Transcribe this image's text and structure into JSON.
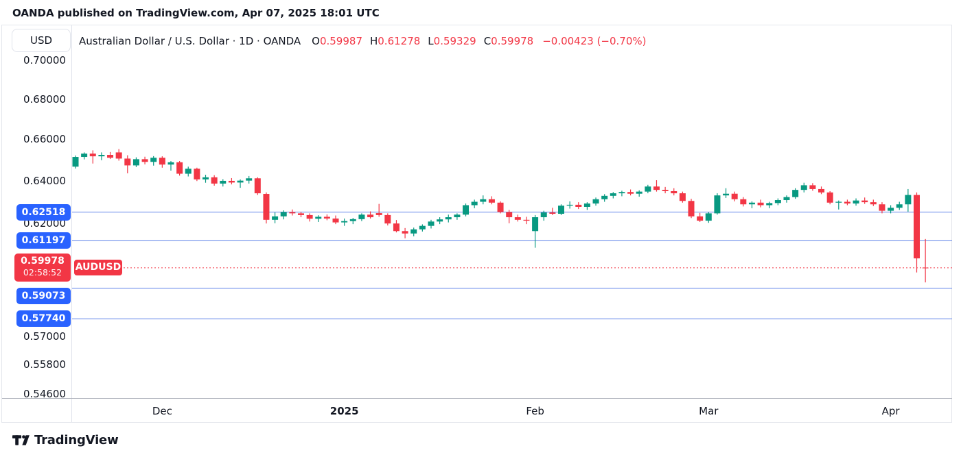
{
  "header": {
    "published": "OANDA published on TradingView.com, Apr 07, 2025 18:01 UTC"
  },
  "legend": {
    "currency": "USD",
    "symbol_title": "Australian Dollar / U.S. Dollar · 1D · OANDA",
    "ohlc": [
      {
        "k": "O",
        "v": "0.59987"
      },
      {
        "k": "H",
        "v": "0.61278"
      },
      {
        "k": "L",
        "v": "0.59329"
      },
      {
        "k": "C",
        "v": "0.59978"
      }
    ],
    "change": "−0.00423 (−0.70%)"
  },
  "current": {
    "price": 0.59978,
    "price_label": "0.59978",
    "countdown": "02:58:52",
    "symbol_tag": "AUDUSD"
  },
  "footer": {
    "logo_text": "TradingView"
  },
  "colors": {
    "up": "#089981",
    "down": "#F23645",
    "badge_blue": "#2962FF",
    "line_blue": "#5B7FE8",
    "text": "#131722",
    "axis_border": "#B2B5BE",
    "widget_border": "#E4E6EC"
  },
  "chart_data": {
    "type": "candlestick",
    "title": "Australian Dollar / U.S. Dollar",
    "timeframe": "1D",
    "exchange": "OANDA",
    "scale": "log",
    "ohlc_current": {
      "open": 0.59987,
      "high": 0.61278,
      "low": 0.59329,
      "close": 0.59978,
      "change": -0.00423,
      "change_pct": -0.7
    },
    "price_ticks": [
      {
        "label": "0.70000",
        "price": 0.7
      },
      {
        "label": "0.68000",
        "price": 0.68
      },
      {
        "label": "0.66000",
        "price": 0.66
      },
      {
        "label": "0.64000",
        "price": 0.64
      },
      {
        "label": "0.62000",
        "price": 0.62
      },
      {
        "label": "0.57000",
        "price": 0.57
      },
      {
        "label": "0.55800",
        "price": 0.558
      },
      {
        "label": "0.54600",
        "price": 0.546
      }
    ],
    "time_ticks": [
      {
        "label": "Dec",
        "bar": 10
      },
      {
        "label": "2025",
        "bar": 31,
        "year": true
      },
      {
        "label": "Feb",
        "bar": 53
      },
      {
        "label": "Mar",
        "bar": 73
      },
      {
        "label": "Apr",
        "bar": 94
      }
    ],
    "price_lines": [
      {
        "label": "0.62518",
        "price": 0.62518
      },
      {
        "label": "0.61197",
        "price": 0.61197
      },
      {
        "label": "0.59073",
        "price": 0.59073
      },
      {
        "label": "0.57740",
        "price": 0.5774
      }
    ],
    "candles": [
      [
        0.6467,
        0.6521,
        0.6458,
        0.6514
      ],
      [
        0.6514,
        0.6536,
        0.6502,
        0.653
      ],
      [
        0.653,
        0.6546,
        0.6482,
        0.6517
      ],
      [
        0.6517,
        0.6536,
        0.6498,
        0.6524
      ],
      [
        0.6524,
        0.6538,
        0.6504,
        0.651
      ],
      [
        0.6536,
        0.6552,
        0.6496,
        0.6506
      ],
      [
        0.6506,
        0.6522,
        0.6435,
        0.6473
      ],
      [
        0.6473,
        0.6512,
        0.6465,
        0.6503
      ],
      [
        0.6503,
        0.6515,
        0.6478,
        0.649
      ],
      [
        0.649,
        0.6518,
        0.6472,
        0.651
      ],
      [
        0.651,
        0.6517,
        0.6462,
        0.6477
      ],
      [
        0.6477,
        0.6494,
        0.6448,
        0.6488
      ],
      [
        0.6488,
        0.6494,
        0.6424,
        0.6433
      ],
      [
        0.6433,
        0.6467,
        0.642,
        0.6457
      ],
      [
        0.6457,
        0.6462,
        0.6398,
        0.6406
      ],
      [
        0.6406,
        0.6428,
        0.639,
        0.6416
      ],
      [
        0.6416,
        0.6426,
        0.6376,
        0.6386
      ],
      [
        0.6386,
        0.6407,
        0.6372,
        0.6399
      ],
      [
        0.6399,
        0.6412,
        0.6382,
        0.6391
      ],
      [
        0.6391,
        0.6406,
        0.6366,
        0.64
      ],
      [
        0.64,
        0.6422,
        0.6386,
        0.6411
      ],
      [
        0.6411,
        0.6416,
        0.6332,
        0.634
      ],
      [
        0.6337,
        0.6344,
        0.6199,
        0.6216
      ],
      [
        0.6216,
        0.625,
        0.62,
        0.6232
      ],
      [
        0.6232,
        0.626,
        0.6218,
        0.6252
      ],
      [
        0.6252,
        0.6264,
        0.6236,
        0.6246
      ],
      [
        0.6246,
        0.6253,
        0.6228,
        0.6238
      ],
      [
        0.6238,
        0.6246,
        0.6208,
        0.6221
      ],
      [
        0.6221,
        0.6237,
        0.6206,
        0.623
      ],
      [
        0.623,
        0.6241,
        0.6214,
        0.6222
      ],
      [
        0.6222,
        0.6236,
        0.6196,
        0.6204
      ],
      [
        0.6204,
        0.6222,
        0.6188,
        0.621
      ],
      [
        0.621,
        0.6225,
        0.6196,
        0.6219
      ],
      [
        0.6219,
        0.6246,
        0.621,
        0.624
      ],
      [
        0.624,
        0.6255,
        0.6222,
        0.6228
      ],
      [
        0.6247,
        0.629,
        0.623,
        0.6238
      ],
      [
        0.6238,
        0.6246,
        0.619,
        0.6199
      ],
      [
        0.6199,
        0.6215,
        0.6158,
        0.6164
      ],
      [
        0.6164,
        0.6178,
        0.6131,
        0.6153
      ],
      [
        0.6153,
        0.618,
        0.614,
        0.6172
      ],
      [
        0.6172,
        0.6195,
        0.6162,
        0.6188
      ],
      [
        0.6188,
        0.6216,
        0.6176,
        0.6208
      ],
      [
        0.6208,
        0.6228,
        0.6196,
        0.6218
      ],
      [
        0.6218,
        0.624,
        0.6204,
        0.6228
      ],
      [
        0.6228,
        0.6246,
        0.6216,
        0.624
      ],
      [
        0.624,
        0.6292,
        0.6232,
        0.6284
      ],
      [
        0.6284,
        0.631,
        0.627,
        0.63
      ],
      [
        0.63,
        0.633,
        0.6288,
        0.6312
      ],
      [
        0.6312,
        0.6326,
        0.6288,
        0.6296
      ],
      [
        0.6296,
        0.6302,
        0.6246,
        0.6252
      ],
      [
        0.6252,
        0.6262,
        0.62,
        0.6228
      ],
      [
        0.6228,
        0.624,
        0.6208,
        0.6216
      ],
      [
        0.6216,
        0.623,
        0.6196,
        0.6212
      ],
      [
        0.6164,
        0.6238,
        0.6088,
        0.6228
      ],
      [
        0.6228,
        0.6258,
        0.6212,
        0.625
      ],
      [
        0.625,
        0.6272,
        0.6238,
        0.6244
      ],
      [
        0.6244,
        0.6288,
        0.6238,
        0.6282
      ],
      [
        0.6282,
        0.6302,
        0.6268,
        0.6286
      ],
      [
        0.6286,
        0.6298,
        0.6266,
        0.6276
      ],
      [
        0.6276,
        0.6298,
        0.6262,
        0.6292
      ],
      [
        0.6292,
        0.632,
        0.6282,
        0.6312
      ],
      [
        0.6312,
        0.6336,
        0.63,
        0.6328
      ],
      [
        0.6328,
        0.6346,
        0.6316,
        0.634
      ],
      [
        0.634,
        0.6352,
        0.6326,
        0.6346
      ],
      [
        0.6346,
        0.6358,
        0.633,
        0.6338
      ],
      [
        0.6338,
        0.6354,
        0.6324,
        0.6348
      ],
      [
        0.6348,
        0.638,
        0.634,
        0.6372
      ],
      [
        0.6372,
        0.6402,
        0.6348,
        0.6356
      ],
      [
        0.6356,
        0.637,
        0.634,
        0.635
      ],
      [
        0.635,
        0.6364,
        0.633,
        0.634
      ],
      [
        0.634,
        0.6348,
        0.6296,
        0.6304
      ],
      [
        0.6304,
        0.6314,
        0.6224,
        0.6232
      ],
      [
        0.6232,
        0.6248,
        0.6206,
        0.6212
      ],
      [
        0.6212,
        0.6252,
        0.6202,
        0.6246
      ],
      [
        0.6246,
        0.634,
        0.624,
        0.633
      ],
      [
        0.633,
        0.6364,
        0.6318,
        0.6338
      ],
      [
        0.6338,
        0.6348,
        0.6302,
        0.6312
      ],
      [
        0.6312,
        0.6322,
        0.6278,
        0.6288
      ],
      [
        0.6288,
        0.6302,
        0.627,
        0.6296
      ],
      [
        0.6296,
        0.631,
        0.6274,
        0.6284
      ],
      [
        0.6284,
        0.63,
        0.627,
        0.6294
      ],
      [
        0.6294,
        0.6316,
        0.6284,
        0.6308
      ],
      [
        0.6308,
        0.633,
        0.6296,
        0.6322
      ],
      [
        0.6322,
        0.6364,
        0.6314,
        0.6356
      ],
      [
        0.6356,
        0.639,
        0.6344,
        0.6378
      ],
      [
        0.6378,
        0.6388,
        0.6352,
        0.636
      ],
      [
        0.636,
        0.6372,
        0.6336,
        0.6344
      ],
      [
        0.6344,
        0.635,
        0.6288,
        0.6296
      ],
      [
        0.6296,
        0.6306,
        0.6264,
        0.63
      ],
      [
        0.63,
        0.631,
        0.6284,
        0.6292
      ],
      [
        0.6292,
        0.6316,
        0.6282,
        0.6306
      ],
      [
        0.6306,
        0.632,
        0.629,
        0.6298
      ],
      [
        0.6298,
        0.631,
        0.628,
        0.6288
      ],
      [
        0.6288,
        0.6298,
        0.6246,
        0.6258
      ],
      [
        0.6258,
        0.6284,
        0.6246,
        0.6272
      ],
      [
        0.6272,
        0.63,
        0.6262,
        0.6288
      ],
      [
        0.6288,
        0.636,
        0.6254,
        0.6332
      ],
      [
        0.6332,
        0.6344,
        0.5977,
        0.604
      ],
      [
        0.59987,
        0.61278,
        0.59329,
        0.59978
      ]
    ]
  }
}
